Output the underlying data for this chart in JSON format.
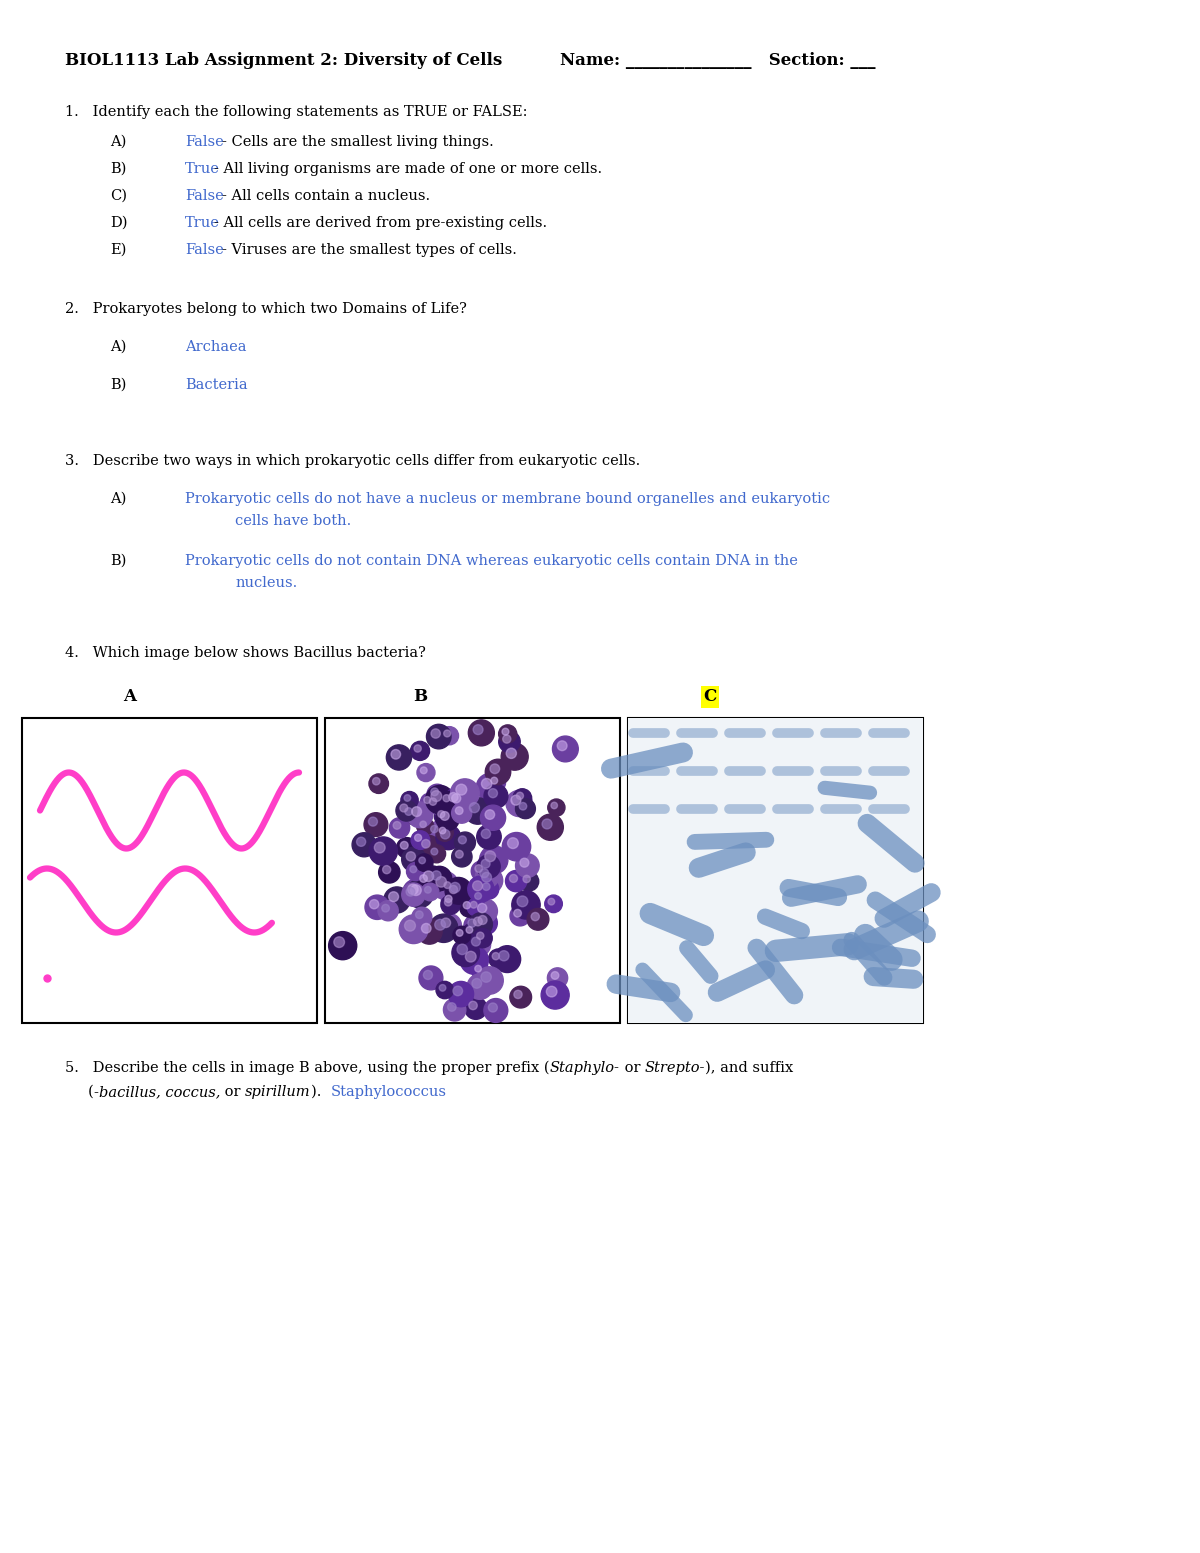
{
  "bg_color": "#ffffff",
  "text_color": "#000000",
  "answer_color": "#4169cd",
  "header_title": "BIOL1113 Lab Assignment 2: Diversity of Cells",
  "header_name": "Name: _______________  Section: ___",
  "q1_prompt": "1.   Identify each the following statements as TRUE or FALSE:",
  "q1_items": [
    {
      "label": "A)",
      "answer": "False",
      "text": "- Cells are the smallest living things."
    },
    {
      "label": "B)",
      "answer": "True",
      "text": "- All living organisms are made of one or more cells."
    },
    {
      "label": "C)",
      "answer": "False",
      "text": "- All cells contain a nucleus."
    },
    {
      "label": "D)",
      "answer": "True",
      "text": "- All cells are derived from pre-existing cells."
    },
    {
      "label": "E)",
      "answer": "False",
      "text": "- Viruses are the smallest types of cells."
    }
  ],
  "q2_prompt": "2.   Prokaryotes belong to which two Domains of Life?",
  "q2_items": [
    {
      "label": "A)",
      "answer": "Archaea"
    },
    {
      "label": "B)",
      "answer": "Bacteria"
    }
  ],
  "q3_prompt": "3.   Describe two ways in which prokaryotic cells differ from eukaryotic cells.",
  "q3_items": [
    {
      "label": "A)",
      "line1": "Prokaryotic cells do not have a nucleus or membrane bound organelles and eukaryotic",
      "line2": "cells have both."
    },
    {
      "label": "B)",
      "line1": "Prokaryotic cells do not contain DNA whereas eukaryotic cells contain DNA in the",
      "line2": "nucleus."
    }
  ],
  "q4_prompt": "4.   Which image below shows Bacillus bacteria?",
  "q4_labels": [
    "A",
    "B",
    "C"
  ],
  "q4_answer_idx": 2,
  "q4_answer_bg": "#ffff00",
  "q5_line1_plain1": "5.   Describe the cells in image B above, using the proper prefix (",
  "q5_line1_italic1": "Staphylo-",
  "q5_line1_plain2": " or ",
  "q5_line1_italic2": "Strepto-",
  "q5_line1_plain3": "), and suffix",
  "q5_line2_plain1": "     (",
  "q5_line2_italic1": "-bacillus, coccus,",
  "q5_line2_plain2": " or ",
  "q5_line2_italic2": "spirillum",
  "q5_line2_plain3": ").  ",
  "q5_answer": "Staphylococcus"
}
